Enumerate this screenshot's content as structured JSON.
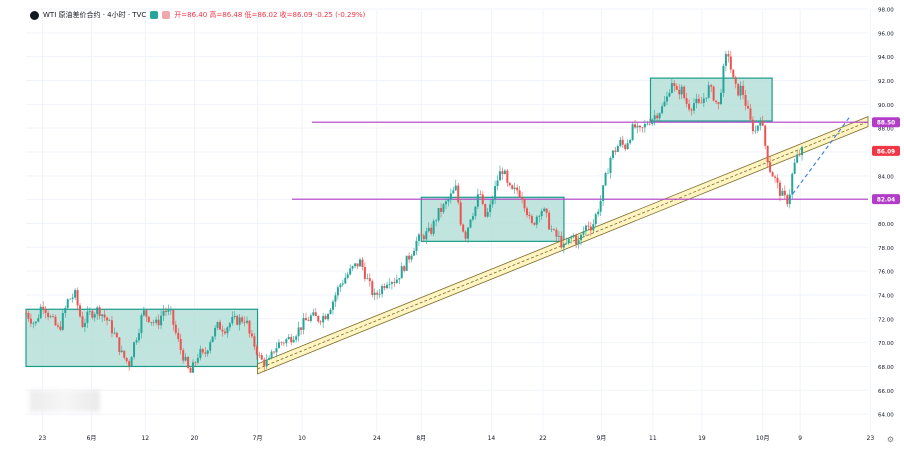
{
  "header": {
    "symbol": "WTI 原油差价合约 · 4小时 · TVC",
    "ohlc": "开=86.40 高=86.48 低=86.02 收=86.09 -0.25 (-0.29%)"
  },
  "colors": {
    "up": "#26a69a",
    "down": "#ef5350",
    "zone_fill": "#b2dfd6",
    "zone_border": "#1a9c8b",
    "level_line": "#b23cc8",
    "channel_fill": "#fff4c2",
    "channel_border": "#7a6a2a",
    "projection": "#3d7ae0",
    "last_price_tag": "#f23645"
  },
  "chart_data": {
    "type": "candlestick",
    "x_tick_labels": [
      "23",
      "6月",
      "12",
      "20",
      "7月",
      "10",
      "24",
      "8月",
      "14",
      "22",
      "9月",
      "11",
      "19",
      "10月",
      "9",
      "23"
    ],
    "y_ticks": [
      64,
      66,
      68,
      70,
      72,
      74,
      76,
      78,
      80,
      82,
      84,
      86,
      88,
      90,
      92,
      94,
      96,
      98
    ],
    "ylim": [
      62.5,
      98
    ],
    "price_labels": [
      {
        "value": 88.5,
        "text": "88.50",
        "kind": "level"
      },
      {
        "value": 86.09,
        "text": "86.09",
        "kind": "last"
      },
      {
        "value": 82.04,
        "text": "82.04",
        "kind": "level"
      }
    ],
    "horizontal_levels": [
      88.5,
      82.04
    ],
    "consolidation_zones": [
      {
        "from_label": "23",
        "to_label": "7月",
        "low": 68.0,
        "high": 72.8
      },
      {
        "from_label": "8月",
        "to_label": "22",
        "low": 78.5,
        "high": 82.2
      },
      {
        "from_label": "9月",
        "to_label": "10月",
        "low": 88.6,
        "high": 92.2
      }
    ],
    "rising_channel": {
      "start_price": 67.8,
      "end_price": 89.5
    },
    "projection": {
      "from_price": 82.0,
      "to_price": 88.9
    },
    "price_path": [
      [
        0,
        72.5
      ],
      [
        4,
        71.5
      ],
      [
        7,
        73.4
      ],
      [
        10,
        72.2
      ],
      [
        14,
        71.0
      ],
      [
        18,
        73.6
      ],
      [
        21,
        74.0
      ],
      [
        24,
        71.5
      ],
      [
        27,
        72.4
      ],
      [
        31,
        72.8
      ],
      [
        35,
        71.8
      ],
      [
        38,
        70.6
      ],
      [
        41,
        69.0
      ],
      [
        44,
        68.2
      ],
      [
        46,
        69.8
      ],
      [
        48,
        71.0
      ],
      [
        50,
        72.6
      ],
      [
        53,
        72.0
      ],
      [
        56,
        71.5
      ],
      [
        59,
        72.8
      ],
      [
        62,
        72.3
      ],
      [
        64,
        70.8
      ],
      [
        66,
        69.5
      ],
      [
        68,
        68.5
      ],
      [
        70,
        67.3
      ],
      [
        72,
        68.2
      ],
      [
        74,
        69.2
      ],
      [
        76,
        68.8
      ],
      [
        79,
        70.4
      ],
      [
        82,
        71.4
      ],
      [
        85,
        71.2
      ],
      [
        88,
        71.8
      ],
      [
        91,
        71.9
      ],
      [
        94,
        72.0
      ],
      [
        96,
        70.3
      ],
      [
        98,
        69.7
      ],
      [
        100,
        68.6
      ],
      [
        102,
        68.3
      ],
      [
        104,
        68.4
      ],
      [
        106,
        69.4
      ],
      [
        108,
        69.9
      ],
      [
        110,
        70.1
      ],
      [
        113,
        70.4
      ],
      [
        116,
        71.0
      ],
      [
        119,
        71.7
      ],
      [
        122,
        72.2
      ],
      [
        125,
        72.0
      ],
      [
        128,
        72.3
      ],
      [
        131,
        73.4
      ],
      [
        134,
        74.8
      ],
      [
        137,
        75.6
      ],
      [
        140,
        76.3
      ],
      [
        143,
        76.8
      ],
      [
        146,
        75.2
      ],
      [
        149,
        73.8
      ],
      [
        152,
        74.6
      ],
      [
        155,
        75.4
      ],
      [
        158,
        75.2
      ],
      [
        161,
        76.2
      ],
      [
        164,
        77.3
      ],
      [
        167,
        78.5
      ],
      [
        170,
        79.0
      ],
      [
        173,
        79.3
      ],
      [
        176,
        80.8
      ],
      [
        179,
        81.5
      ],
      [
        182,
        82.4
      ],
      [
        184,
        83.0
      ],
      [
        186,
        80.0
      ],
      [
        188,
        79.0
      ],
      [
        190,
        80.6
      ],
      [
        192,
        81.3
      ],
      [
        194,
        82.7
      ],
      [
        196,
        80.5
      ],
      [
        198,
        81.0
      ],
      [
        200,
        82.5
      ],
      [
        202,
        84.0
      ],
      [
        204,
        84.6
      ],
      [
        206,
        83.0
      ],
      [
        208,
        82.6
      ],
      [
        210,
        82.8
      ],
      [
        212,
        82.4
      ],
      [
        214,
        81.2
      ],
      [
        216,
        79.7
      ],
      [
        218,
        80.5
      ],
      [
        220,
        81.3
      ],
      [
        222,
        80.8
      ],
      [
        224,
        79.7
      ],
      [
        226,
        79.0
      ],
      [
        228,
        78.7
      ],
      [
        230,
        77.9
      ],
      [
        232,
        78.5
      ],
      [
        234,
        79.0
      ],
      [
        236,
        78.3
      ],
      [
        238,
        79.2
      ],
      [
        240,
        80.0
      ],
      [
        242,
        79.7
      ],
      [
        244,
        80.9
      ],
      [
        246,
        82.1
      ],
      [
        248,
        84.0
      ],
      [
        250,
        85.6
      ],
      [
        252,
        86.2
      ],
      [
        254,
        86.8
      ],
      [
        256,
        86.4
      ],
      [
        258,
        87.3
      ],
      [
        260,
        88.2
      ],
      [
        262,
        87.6
      ],
      [
        264,
        88.0
      ],
      [
        266,
        88.6
      ],
      [
        268,
        88.9
      ],
      [
        270,
        89.3
      ],
      [
        272,
        89.7
      ],
      [
        274,
        90.5
      ],
      [
        276,
        92.1
      ],
      [
        278,
        90.8
      ],
      [
        280,
        91.4
      ],
      [
        282,
        90.2
      ],
      [
        284,
        89.8
      ],
      [
        286,
        90.2
      ],
      [
        288,
        89.8
      ],
      [
        290,
        90.6
      ],
      [
        292,
        91.4
      ],
      [
        294,
        90.7
      ],
      [
        296,
        89.7
      ],
      [
        298,
        92.6
      ],
      [
        300,
        94.6
      ],
      [
        302,
        92.2
      ],
      [
        304,
        91.0
      ],
      [
        306,
        91.4
      ],
      [
        308,
        89.8
      ],
      [
        310,
        88.3
      ],
      [
        312,
        87.7
      ],
      [
        314,
        89.1
      ],
      [
        316,
        86.6
      ],
      [
        318,
        84.6
      ],
      [
        320,
        83.8
      ],
      [
        322,
        82.8
      ],
      [
        324,
        82.1
      ],
      [
        326,
        81.9
      ],
      [
        328,
        84.6
      ],
      [
        330,
        85.7
      ],
      [
        332,
        86.1
      ]
    ]
  }
}
